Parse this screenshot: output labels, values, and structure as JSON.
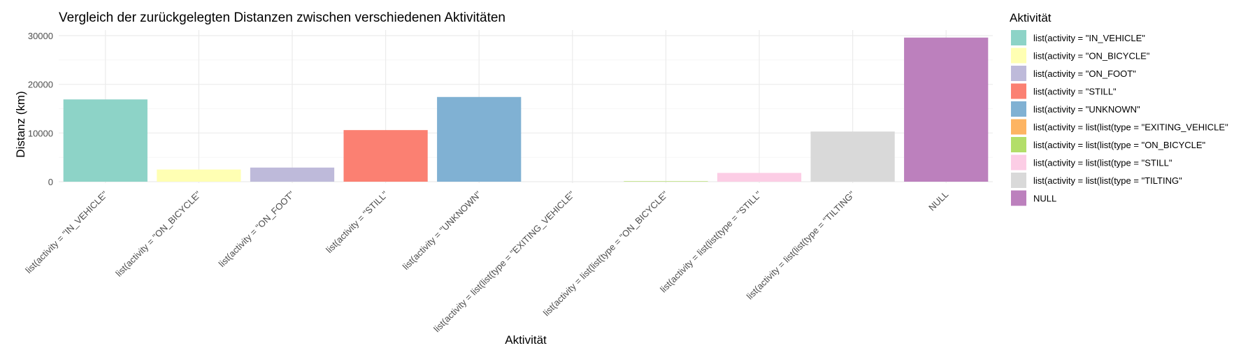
{
  "chart_data": {
    "type": "bar",
    "title": "Vergleich der zurückgelegten Distanzen zwischen verschiedenen Aktivitäten",
    "xlabel": "Aktivität",
    "ylabel": "Distanz (km)",
    "ylim": [
      0,
      31000
    ],
    "yticks": [
      0,
      10000,
      20000,
      30000
    ],
    "categories": [
      "list(activity = \"IN_VEHICLE\"",
      "list(activity = \"ON_BICYCLE\"",
      "list(activity = \"ON_FOOT\"",
      "list(activity = \"STILL\"",
      "list(activity = \"UNKNOWN\"",
      "list(activity = list(list(type = \"EXITING_VEHICLE\"",
      "list(activity = list(list(type = \"ON_BICYCLE\"",
      "list(activity = list(list(type = \"STILL\"",
      "list(activity = list(list(type = \"TILTING\"",
      "NULL"
    ],
    "values": [
      16900,
      2500,
      2900,
      10600,
      17400,
      0,
      100,
      1800,
      10300,
      29600
    ],
    "colors": [
      "#8dd3c7",
      "#ffffb3",
      "#bebada",
      "#fb8072",
      "#80b1d3",
      "#fdb462",
      "#b3de69",
      "#fccde5",
      "#d9d9d9",
      "#bc80bd"
    ],
    "grid": true,
    "legend": {
      "title": "Aktivität",
      "position": "right",
      "entries": [
        "list(activity = \"IN_VEHICLE\"",
        "list(activity = \"ON_BICYCLE\"",
        "list(activity = \"ON_FOOT\"",
        "list(activity = \"STILL\"",
        "list(activity = \"UNKNOWN\"",
        "list(activity = list(list(type = \"EXITING_VEHICLE\"",
        "list(activity = list(list(type = \"ON_BICYCLE\"",
        "list(activity = list(list(type = \"STILL\"",
        "list(activity = list(list(type = \"TILTING\"",
        "NULL"
      ]
    }
  }
}
